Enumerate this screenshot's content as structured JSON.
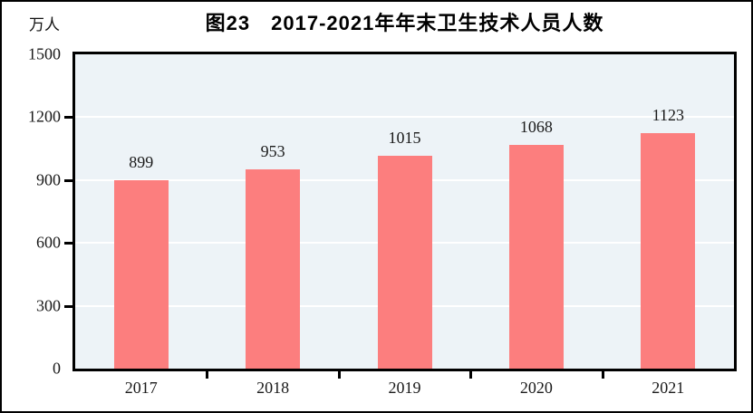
{
  "chart_data": {
    "type": "bar",
    "title": "图23　2017-2021年年末卫生技术人员人数",
    "ylabel": "万人",
    "xlabel": "",
    "categories": [
      "2017",
      "2018",
      "2019",
      "2020",
      "2021"
    ],
    "values": [
      899,
      953,
      1015,
      1068,
      1123
    ],
    "ylim": [
      0,
      1500
    ],
    "yticks": [
      0,
      300,
      600,
      900,
      1200,
      1500
    ],
    "grid": true,
    "data_labels": true,
    "legend_position": "none",
    "bar_color": "#fc7e7e",
    "plot_bg_color": "#edf3f7",
    "gridline_color": "#ffffff",
    "axis_color": "#000000",
    "label_color": "#1a1a1a"
  }
}
